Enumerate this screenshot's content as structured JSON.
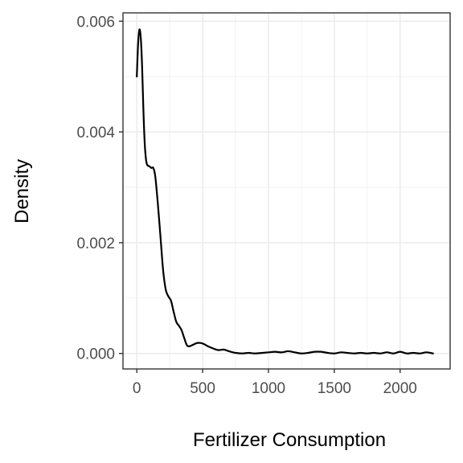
{
  "chart_data": {
    "type": "line",
    "title": "",
    "xlabel": "Fertilizer Consumption",
    "ylabel": "Density",
    "xlim": [
      -105,
      2380
    ],
    "ylim": [
      -0.00028,
      0.00615
    ],
    "x_ticks": [
      0,
      500,
      1000,
      1500,
      2000
    ],
    "x_tick_labels": [
      "0",
      "500",
      "1000",
      "1500",
      "2000"
    ],
    "y_ticks": [
      0,
      0.002,
      0.004,
      0.006
    ],
    "y_tick_labels": [
      "0.000",
      "0.002",
      "0.004",
      "0.006"
    ],
    "grid": true,
    "series": [
      {
        "x": [
          0,
          10,
          20,
          30,
          40,
          50,
          60,
          70,
          80,
          95,
          110,
          125,
          140,
          160,
          180,
          200,
          220,
          240,
          260,
          280,
          300,
          320,
          340,
          360,
          380,
          400,
          430,
          460,
          500,
          540,
          580,
          620,
          660,
          700,
          750,
          800,
          850,
          900,
          1000,
          1050,
          1100,
          1150,
          1200,
          1250,
          1300,
          1350,
          1400,
          1450,
          1500,
          1550,
          1600,
          1650,
          1700,
          1750,
          1800,
          1850,
          1900,
          1950,
          2000,
          2050,
          2100,
          2150,
          2200,
          2250
        ],
        "y": [
          0.005,
          0.0056,
          0.00585,
          0.0057,
          0.0052,
          0.0044,
          0.0038,
          0.0035,
          0.0034,
          0.00338,
          0.00335,
          0.00335,
          0.0032,
          0.0027,
          0.0021,
          0.0015,
          0.00115,
          0.00103,
          0.00095,
          0.00075,
          0.00057,
          0.0005,
          0.00042,
          0.00028,
          0.00015,
          0.00013,
          0.00016,
          0.00019,
          0.00018,
          0.00013,
          9e-05,
          6e-05,
          7e-05,
          4e-05,
          1e-05,
          0.0,
          1e-05,
          0.0,
          2e-05,
          3e-05,
          2e-05,
          4e-05,
          2e-05,
          0.0,
          1e-05,
          3e-05,
          3e-05,
          1e-05,
          0.0,
          2e-05,
          1e-05,
          0.0,
          1e-05,
          0.0,
          1e-05,
          0.0,
          2e-05,
          0.0,
          3e-05,
          0.0,
          1e-05,
          0.0,
          2e-05,
          0.0
        ]
      }
    ]
  }
}
